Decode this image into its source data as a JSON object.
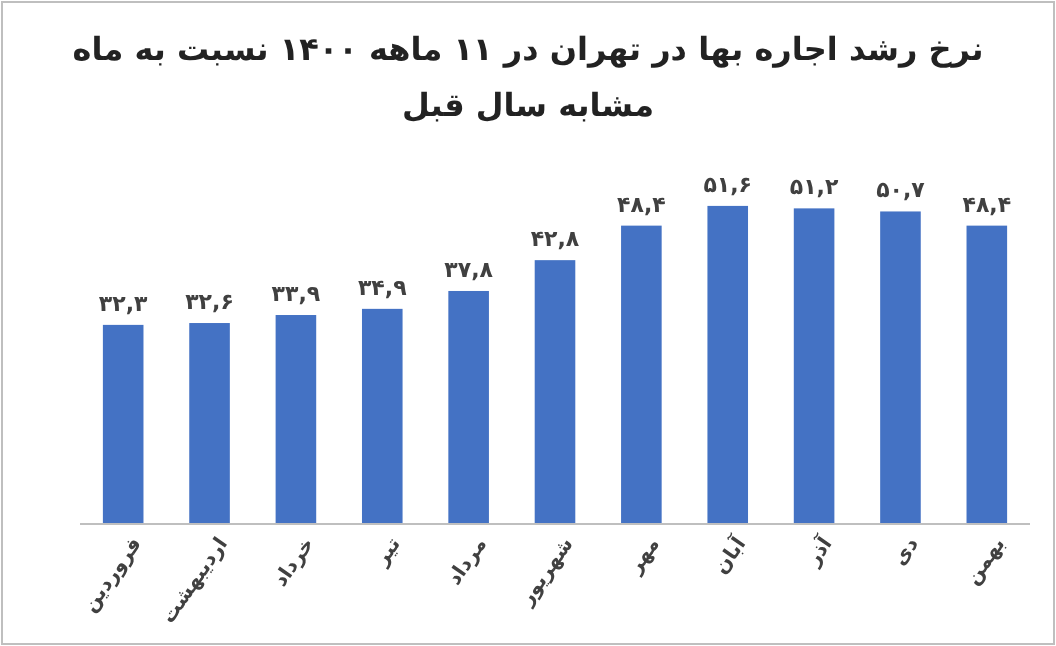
{
  "chart_data": {
    "type": "bar",
    "title": "نرخ رشد اجاره بها در تهران در ۱۱ ماهه ۱۴۰۰ نسبت به ماه مشابه سال قبل",
    "categories": [
      "فروردین",
      "اردیبهشت",
      "خرداد",
      "تیر",
      "مرداد",
      "شهریور",
      "مهر",
      "آبان",
      "آذر",
      "دی",
      "بهمن"
    ],
    "values": [
      32.3,
      32.6,
      33.9,
      34.9,
      37.8,
      42.8,
      48.4,
      51.6,
      51.2,
      50.7,
      48.4
    ],
    "value_labels": [
      "۳۲,۳",
      "۳۲,۶",
      "۳۳,۹",
      "۳۴,۹",
      "۳۷,۸",
      "۴۲,۸",
      "۴۸,۴",
      "۵۱,۶",
      "۵۱,۲",
      "۵۰,۷",
      "۴۸,۴"
    ],
    "color": "#4472c4"
  }
}
